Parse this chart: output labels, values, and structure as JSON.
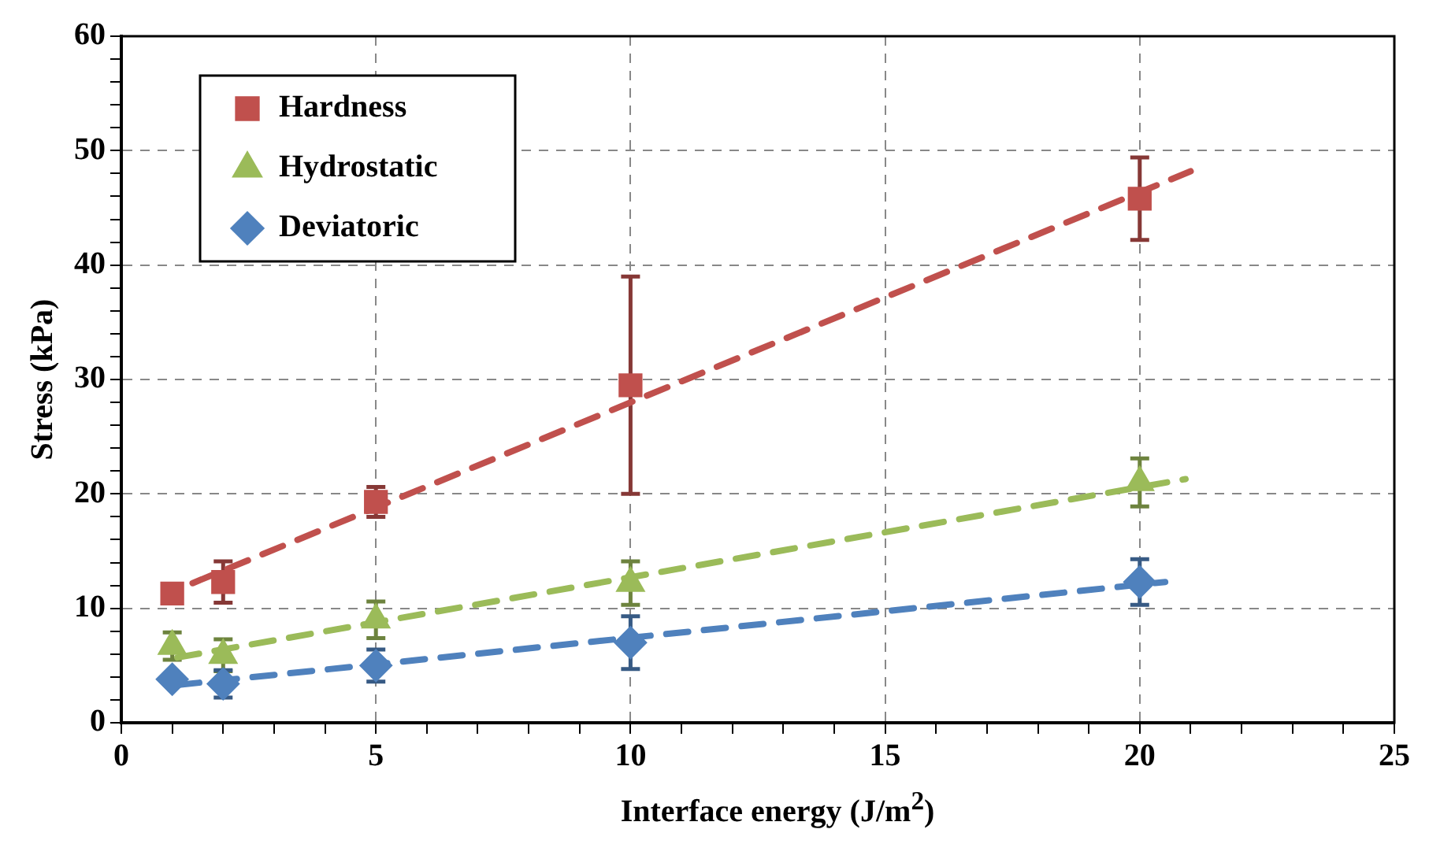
{
  "chart_data": {
    "type": "scatter",
    "xlabel": "Interface energy (J/m$^{2}$)",
    "ylabel": "Stress (kPa)",
    "x": [
      1,
      2,
      5,
      10,
      20
    ],
    "series": [
      {
        "name": "Hardness",
        "color": "#c0504d",
        "marker": "square",
        "values": [
          11.3,
          12.3,
          19.3,
          29.5,
          45.8
        ],
        "errors": [
          null,
          1.8,
          1.3,
          9.5,
          3.6
        ]
      },
      {
        "name": "Hydrostatic",
        "color": "#9bbb59",
        "marker": "triangle",
        "values": [
          6.7,
          5.9,
          9,
          12.2,
          21
        ],
        "errors": [
          1.2,
          1.4,
          1.6,
          1.9,
          2.1
        ]
      },
      {
        "name": "Deviatoric",
        "color": "#4f81bd",
        "marker": "diamond",
        "values": [
          3.8,
          3.4,
          5,
          7,
          12.3
        ],
        "errors": [
          null,
          1.2,
          1.4,
          2.3,
          2
        ]
      },
      {
        "type": "line",
        "color": "#c0504d",
        "line_style": "dashed",
        "marker": "none",
        "x": [
          1.4,
          21
        ],
        "values": [
          12.2,
          48.2
        ]
      },
      {
        "type": "line",
        "color": "#9bbb59",
        "line_style": "dashed",
        "marker": "none",
        "x": [
          1.1,
          20.9
        ],
        "values": [
          5.7,
          21.3
        ]
      },
      {
        "type": "line",
        "color": "#4f81bd",
        "line_style": "dashed",
        "marker": "none",
        "x": [
          1.1,
          20.5
        ],
        "values": [
          3.3,
          12.3
        ]
      }
    ],
    "xlim": [
      0,
      25
    ],
    "xticks": [
      0,
      {
        "value": 1,
        "label": null
      },
      {
        "value": 2,
        "label": null
      },
      {
        "value": 3,
        "label": null
      },
      {
        "value": 4,
        "label": null
      },
      5,
      {
        "value": 6,
        "label": null
      },
      {
        "value": 7,
        "label": null
      },
      {
        "value": 8,
        "label": null
      },
      {
        "value": 9,
        "label": null
      },
      10,
      {
        "value": 11,
        "label": null
      },
      {
        "value": 12,
        "label": null
      },
      {
        "value": 13,
        "label": null
      },
      {
        "value": 14,
        "label": null
      },
      15,
      {
        "value": 16,
        "label": null
      },
      {
        "value": 17,
        "label": null
      },
      {
        "value": 18,
        "label": null
      },
      {
        "value": 19,
        "label": null
      },
      20,
      {
        "value": 21,
        "label": null
      },
      {
        "value": 22,
        "label": null
      },
      {
        "value": 23,
        "label": null
      },
      {
        "value": 24,
        "label": null
      },
      25
    ],
    "ylim": [
      0,
      60
    ],
    "yticks": [
      0,
      {
        "value": 2,
        "label": null
      },
      {
        "value": 4,
        "label": null
      },
      {
        "value": 6,
        "label": null
      },
      {
        "value": 8,
        "label": null
      },
      10,
      {
        "value": 12,
        "label": null
      },
      {
        "value": 14,
        "label": null
      },
      {
        "value": 16,
        "label": null
      },
      {
        "value": 18,
        "label": null
      },
      20,
      {
        "value": 22,
        "label": null
      },
      {
        "value": 24,
        "label": null
      },
      {
        "value": 26,
        "label": null
      },
      {
        "value": 28,
        "label": null
      },
      30,
      {
        "value": 32,
        "label": null
      },
      {
        "value": 34,
        "label": null
      },
      {
        "value": 36,
        "label": null
      },
      {
        "value": 38,
        "label": null
      },
      40,
      {
        "value": 42,
        "label": null
      },
      {
        "value": 44,
        "label": null
      },
      {
        "value": 46,
        "label": null
      },
      {
        "value": 48,
        "label": null
      },
      50,
      {
        "value": 52,
        "label": null
      },
      {
        "value": 54,
        "label": null
      },
      {
        "value": 56,
        "label": null
      },
      {
        "value": 58,
        "label": null
      },
      60
    ],
    "grid": true,
    "legend": "top left"
  }
}
